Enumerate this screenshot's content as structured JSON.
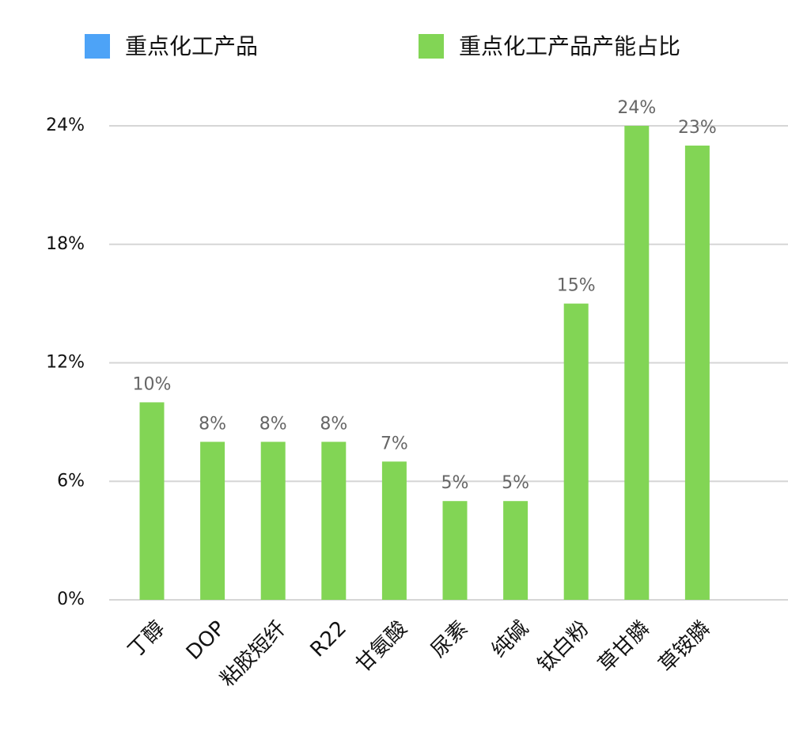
{
  "chart_data": {
    "type": "bar",
    "categories": [
      "丁醇",
      "DOP",
      "粘胶短纤",
      "R22",
      "甘氨酸",
      "尿素",
      "纯碱",
      "钛白粉",
      "草甘膦",
      "草铵膦"
    ],
    "series": [
      {
        "name": "重点化工产品",
        "color": "#4da3f7",
        "values": [
          null,
          null,
          null,
          null,
          null,
          null,
          null,
          null,
          null,
          null
        ]
      },
      {
        "name": "重点化工产品产能占比",
        "color": "#82d555",
        "values": [
          10,
          8,
          8,
          8,
          7,
          5,
          5,
          15,
          24,
          23
        ],
        "value_labels": [
          "10%",
          "8%",
          "8%",
          "8%",
          "7%",
          "5%",
          "5%",
          "15%",
          "24%",
          "23%"
        ]
      }
    ],
    "ylim": [
      0,
      24
    ],
    "yticks": [
      {
        "value": 0,
        "label": "0%"
      },
      {
        "value": 6,
        "label": "6%"
      },
      {
        "value": 12,
        "label": "12%"
      },
      {
        "value": 18,
        "label": "18%"
      },
      {
        "value": 24,
        "label": "24%"
      }
    ],
    "grid": true,
    "legend": "top"
  }
}
